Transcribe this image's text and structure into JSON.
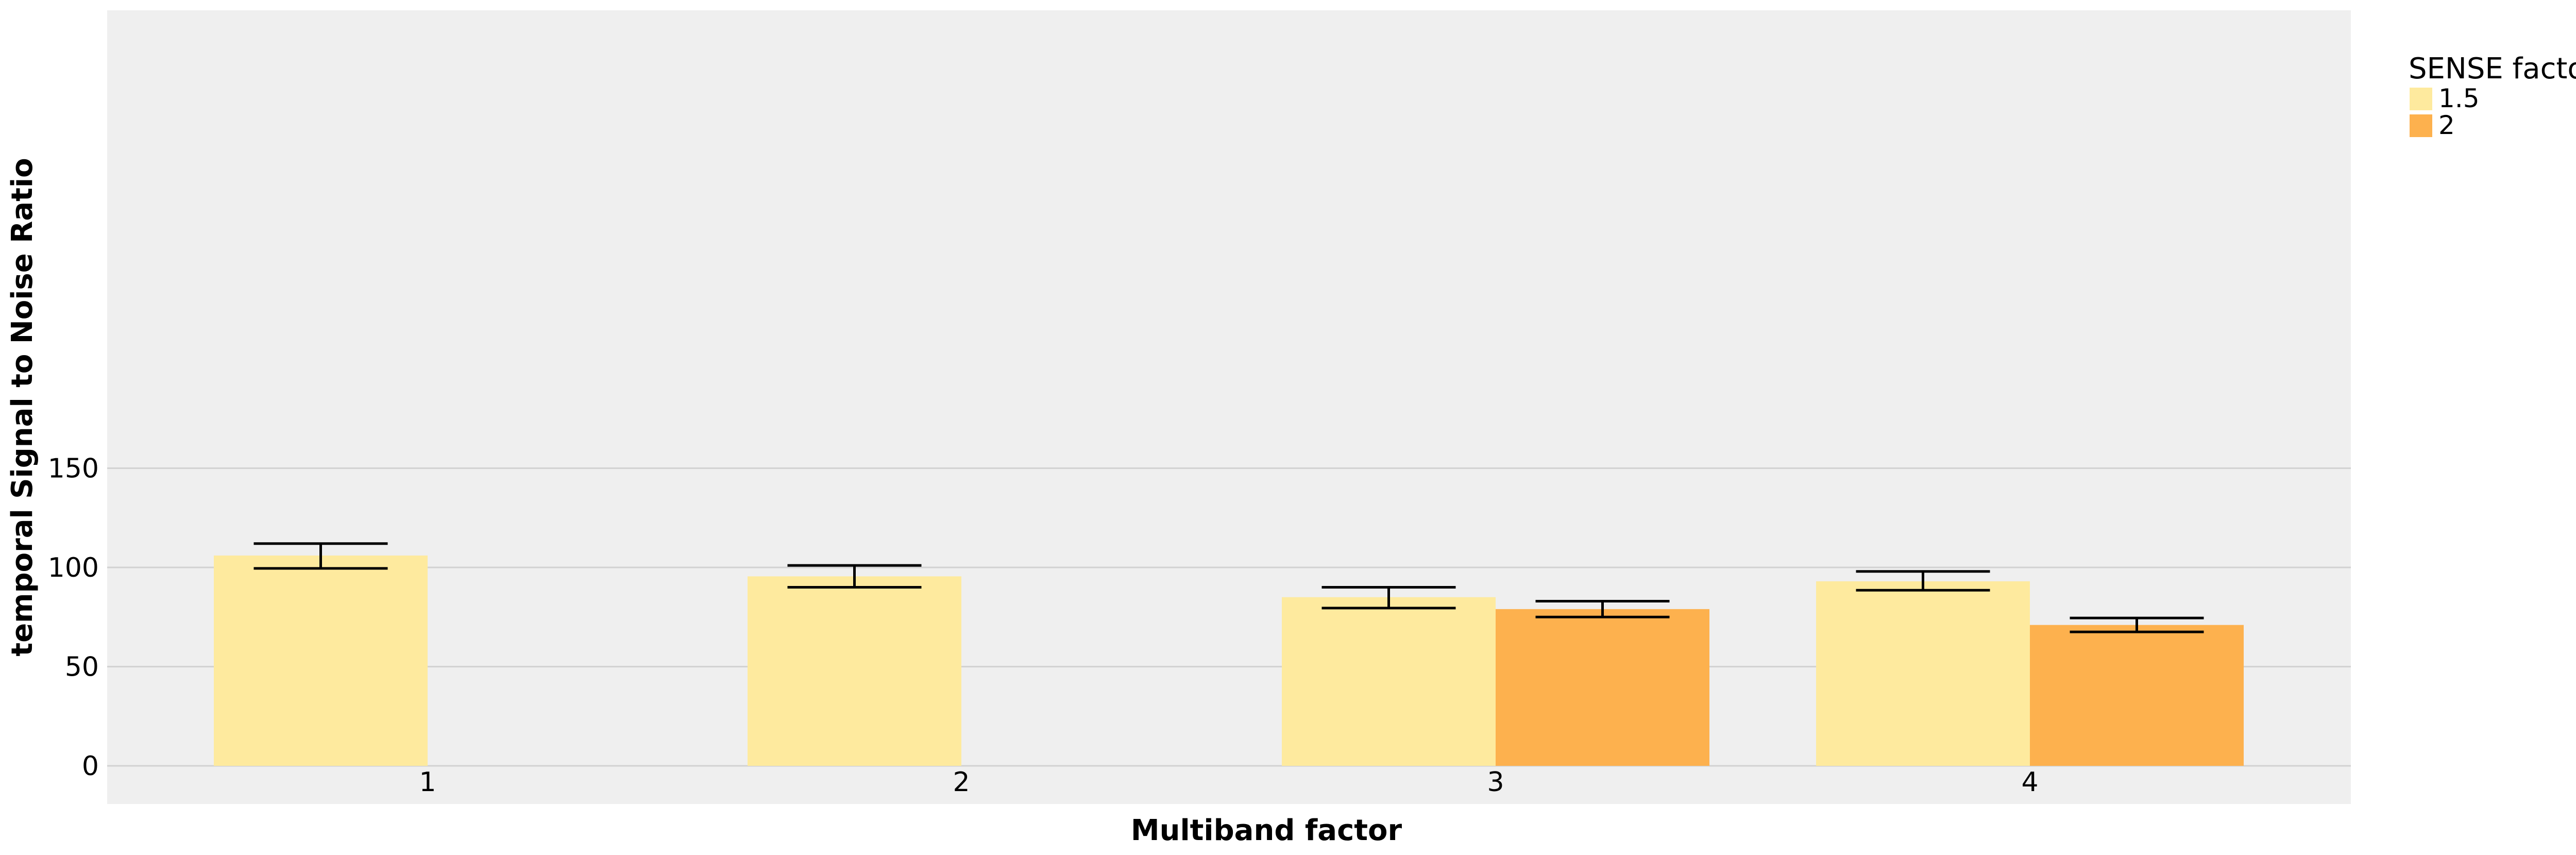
{
  "chart_data": {
    "type": "bar",
    "xlabel": "Multiband factor",
    "ylabel": "temporal Signal to Noise Ratio",
    "categories": [
      "1",
      "2",
      "3",
      "4"
    ],
    "ylim": [
      0,
      190
    ],
    "yticks": [
      0,
      50,
      100,
      150
    ],
    "grid": true,
    "legend": {
      "title": "SENSE factor",
      "placement": "right"
    },
    "series": [
      {
        "name": "1.5",
        "color": "#FEEA9E",
        "values": [
          106,
          95.5,
          85,
          93
        ],
        "error_low": [
          99.5,
          90,
          79.5,
          88.5
        ],
        "error_high": [
          112,
          101,
          90,
          98
        ]
      },
      {
        "name": "2",
        "color": "#FDB14E",
        "values": [
          null,
          null,
          79,
          71
        ],
        "error_low": [
          null,
          null,
          75,
          67.5
        ],
        "error_high": [
          null,
          null,
          83,
          74.5
        ]
      }
    ]
  }
}
